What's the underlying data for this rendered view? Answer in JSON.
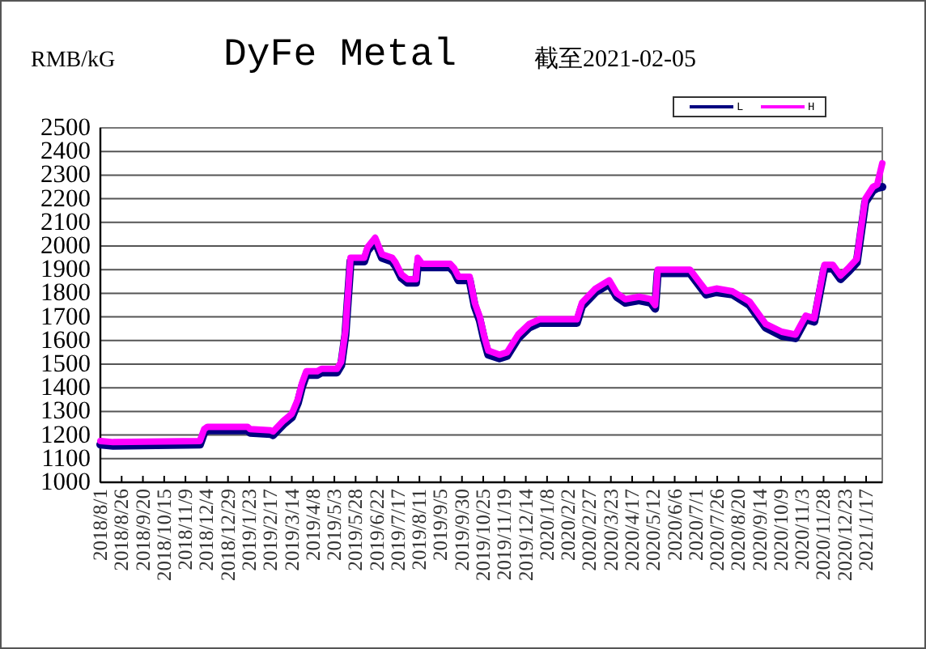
{
  "chart_data": {
    "type": "line",
    "title": "DyFe Metal",
    "subtitle": "截至2021-02-05",
    "ylabel": "RMB/kG",
    "x": [
      "2018-08-01",
      "2018-08-16",
      "2018-11-26",
      "2018-12-01",
      "2018-12-05",
      "2019-01-21",
      "2019-01-24",
      "2019-02-17",
      "2019-02-20",
      "2019-03-04",
      "2019-03-14",
      "2019-03-21",
      "2019-03-26",
      "2019-03-31",
      "2019-04-13",
      "2019-04-18",
      "2019-05-06",
      "2019-05-11",
      "2019-05-16",
      "2019-05-22",
      "2019-06-07",
      "2019-06-11",
      "2019-06-20",
      "2019-06-28",
      "2019-07-10",
      "2019-07-14",
      "2019-07-21",
      "2019-07-28",
      "2019-08-07",
      "2019-08-09",
      "2019-08-14",
      "2019-09-16",
      "2019-09-21",
      "2019-09-26",
      "2019-10-09",
      "2019-10-15",
      "2019-10-21",
      "2019-10-26",
      "2019-10-31",
      "2019-11-13",
      "2019-11-22",
      "2019-12-05",
      "2019-12-18",
      "2019-12-30",
      "2020-02-12",
      "2020-02-18",
      "2020-03-05",
      "2020-03-21",
      "2020-03-30",
      "2020-04-09",
      "2020-04-25",
      "2020-05-09",
      "2020-05-14",
      "2020-05-17",
      "2020-06-24",
      "2020-07-13",
      "2020-07-25",
      "2020-08-13",
      "2020-09-02",
      "2020-09-21",
      "2020-10-10",
      "2020-10-26",
      "2020-11-07",
      "2020-11-17",
      "2020-11-29",
      "2020-12-09",
      "2020-12-18",
      "2020-12-28",
      "2021-01-06",
      "2021-01-16",
      "2021-01-25",
      "2021-01-30",
      "2021-02-05"
    ],
    "series": [
      {
        "name": "L",
        "color": "#000080",
        "values": [
          1160,
          1155,
          1160,
          1210,
          1220,
          1220,
          1210,
          1205,
          1200,
          1245,
          1275,
          1335,
          1405,
          1455,
          1455,
          1465,
          1465,
          1495,
          1625,
          1935,
          1935,
          1980,
          2020,
          1950,
          1935,
          1915,
          1865,
          1845,
          1845,
          1920,
          1910,
          1910,
          1890,
          1855,
          1855,
          1745,
          1685,
          1605,
          1540,
          1525,
          1535,
          1610,
          1655,
          1675,
          1675,
          1745,
          1805,
          1840,
          1785,
          1760,
          1770,
          1760,
          1735,
          1885,
          1885,
          1795,
          1805,
          1795,
          1750,
          1655,
          1620,
          1610,
          1690,
          1680,
          1905,
          1905,
          1860,
          1895,
          1930,
          2185,
          2235,
          2245,
          2250
        ]
      },
      {
        "name": "H",
        "color": "#ff00ff",
        "values": [
          1175,
          1170,
          1175,
          1225,
          1235,
          1235,
          1225,
          1220,
          1215,
          1260,
          1290,
          1350,
          1420,
          1470,
          1470,
          1480,
          1480,
          1510,
          1640,
          1950,
          1950,
          1995,
          2035,
          1965,
          1950,
          1930,
          1880,
          1860,
          1860,
          1950,
          1925,
          1925,
          1905,
          1870,
          1870,
          1760,
          1700,
          1620,
          1557,
          1540,
          1550,
          1625,
          1670,
          1690,
          1690,
          1760,
          1820,
          1855,
          1800,
          1775,
          1785,
          1775,
          1750,
          1900,
          1900,
          1810,
          1820,
          1808,
          1765,
          1670,
          1637,
          1625,
          1705,
          1694,
          1920,
          1920,
          1875,
          1910,
          1945,
          2200,
          2250,
          2260,
          2350
        ]
      }
    ],
    "xlim": [
      "2018-08-01",
      "2021-02-05"
    ],
    "xticks": [
      {
        "value": "2018-08-01",
        "label": "2018/8/1"
      },
      {
        "value": "2018-08-26",
        "label": "2018/8/26"
      },
      {
        "value": "2018-09-20",
        "label": "2018/9/20"
      },
      {
        "value": "2018-10-15",
        "label": "2018/10/15"
      },
      {
        "value": "2018-11-09",
        "label": "2018/11/9"
      },
      {
        "value": "2018-12-04",
        "label": "2018/12/4"
      },
      {
        "value": "2018-12-29",
        "label": "2018/12/29"
      },
      {
        "value": "2019-01-23",
        "label": "2019/1/23"
      },
      {
        "value": "2019-02-17",
        "label": "2019/2/17"
      },
      {
        "value": "2019-03-14",
        "label": "2019/3/14"
      },
      {
        "value": "2019-04-08",
        "label": "2019/4/8"
      },
      {
        "value": "2019-05-03",
        "label": "2019/5/3"
      },
      {
        "value": "2019-05-28",
        "label": "2019/5/28"
      },
      {
        "value": "2019-06-22",
        "label": "2019/6/22"
      },
      {
        "value": "2019-07-17",
        "label": "2019/7/17"
      },
      {
        "value": "2019-08-11",
        "label": "2019/8/11"
      },
      {
        "value": "2019-09-05",
        "label": "2019/9/5"
      },
      {
        "value": "2019-09-30",
        "label": "2019/9/30"
      },
      {
        "value": "2019-10-25",
        "label": "2019/10/25"
      },
      {
        "value": "2019-11-19",
        "label": "2019/11/19"
      },
      {
        "value": "2019-12-14",
        "label": "2019/12/14"
      },
      {
        "value": "2020-01-08",
        "label": "2020/1/8"
      },
      {
        "value": "2020-02-02",
        "label": "2020/2/2"
      },
      {
        "value": "2020-02-27",
        "label": "2020/2/27"
      },
      {
        "value": "2020-03-23",
        "label": "2020/3/23"
      },
      {
        "value": "2020-04-17",
        "label": "2020/4/17"
      },
      {
        "value": "2020-05-12",
        "label": "2020/5/12"
      },
      {
        "value": "2020-06-06",
        "label": "2020/6/6"
      },
      {
        "value": "2020-07-01",
        "label": "2020/7/1"
      },
      {
        "value": "2020-07-26",
        "label": "2020/7/26"
      },
      {
        "value": "2020-08-20",
        "label": "2020/8/20"
      },
      {
        "value": "2020-09-14",
        "label": "2020/9/14"
      },
      {
        "value": "2020-10-09",
        "label": "2020/10/9"
      },
      {
        "value": "2020-11-03",
        "label": "2020/11/3"
      },
      {
        "value": "2020-11-28",
        "label": "2020/11/28"
      },
      {
        "value": "2020-12-23",
        "label": "2020/12/23"
      },
      {
        "value": "2021-01-17",
        "label": "2021/1/17"
      }
    ],
    "ylim": [
      1000,
      2500
    ],
    "yticks": [
      1000,
      1100,
      1200,
      1300,
      1400,
      1500,
      1600,
      1700,
      1800,
      1900,
      2000,
      2100,
      2200,
      2300,
      2400,
      2500
    ],
    "grid": "y",
    "legend": "top right"
  }
}
